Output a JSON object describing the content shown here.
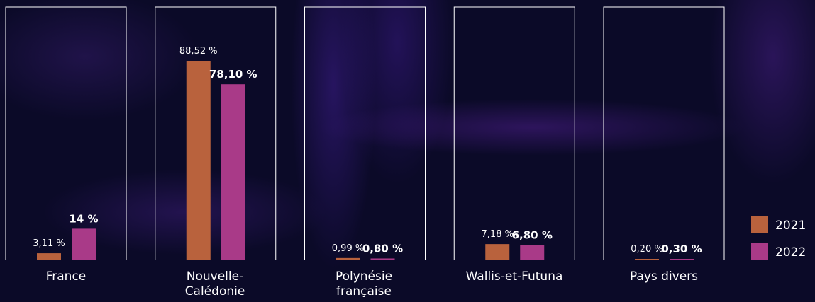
{
  "chart_data": {
    "type": "bar",
    "categories": [
      "France",
      "Nouvelle-Calédonie",
      "Polynésie française",
      "Wallis-et-Futuna",
      "Pays divers"
    ],
    "series": [
      {
        "name": "2021",
        "color": "#b9623d",
        "values": [
          3.11,
          88.52,
          0.99,
          7.18,
          0.2
        ],
        "value_labels": [
          "3,11 %",
          "88,52 %",
          "0,99 %",
          "7,18 %",
          "0,20 %"
        ]
      },
      {
        "name": "2022",
        "color": "#a93a88",
        "values": [
          14,
          78.1,
          0.8,
          6.8,
          0.3
        ],
        "value_labels": [
          "14 %",
          "78,10 %",
          "0,80 %",
          "6,80 %",
          "0,30 %"
        ]
      }
    ],
    "legend": "right"
  }
}
